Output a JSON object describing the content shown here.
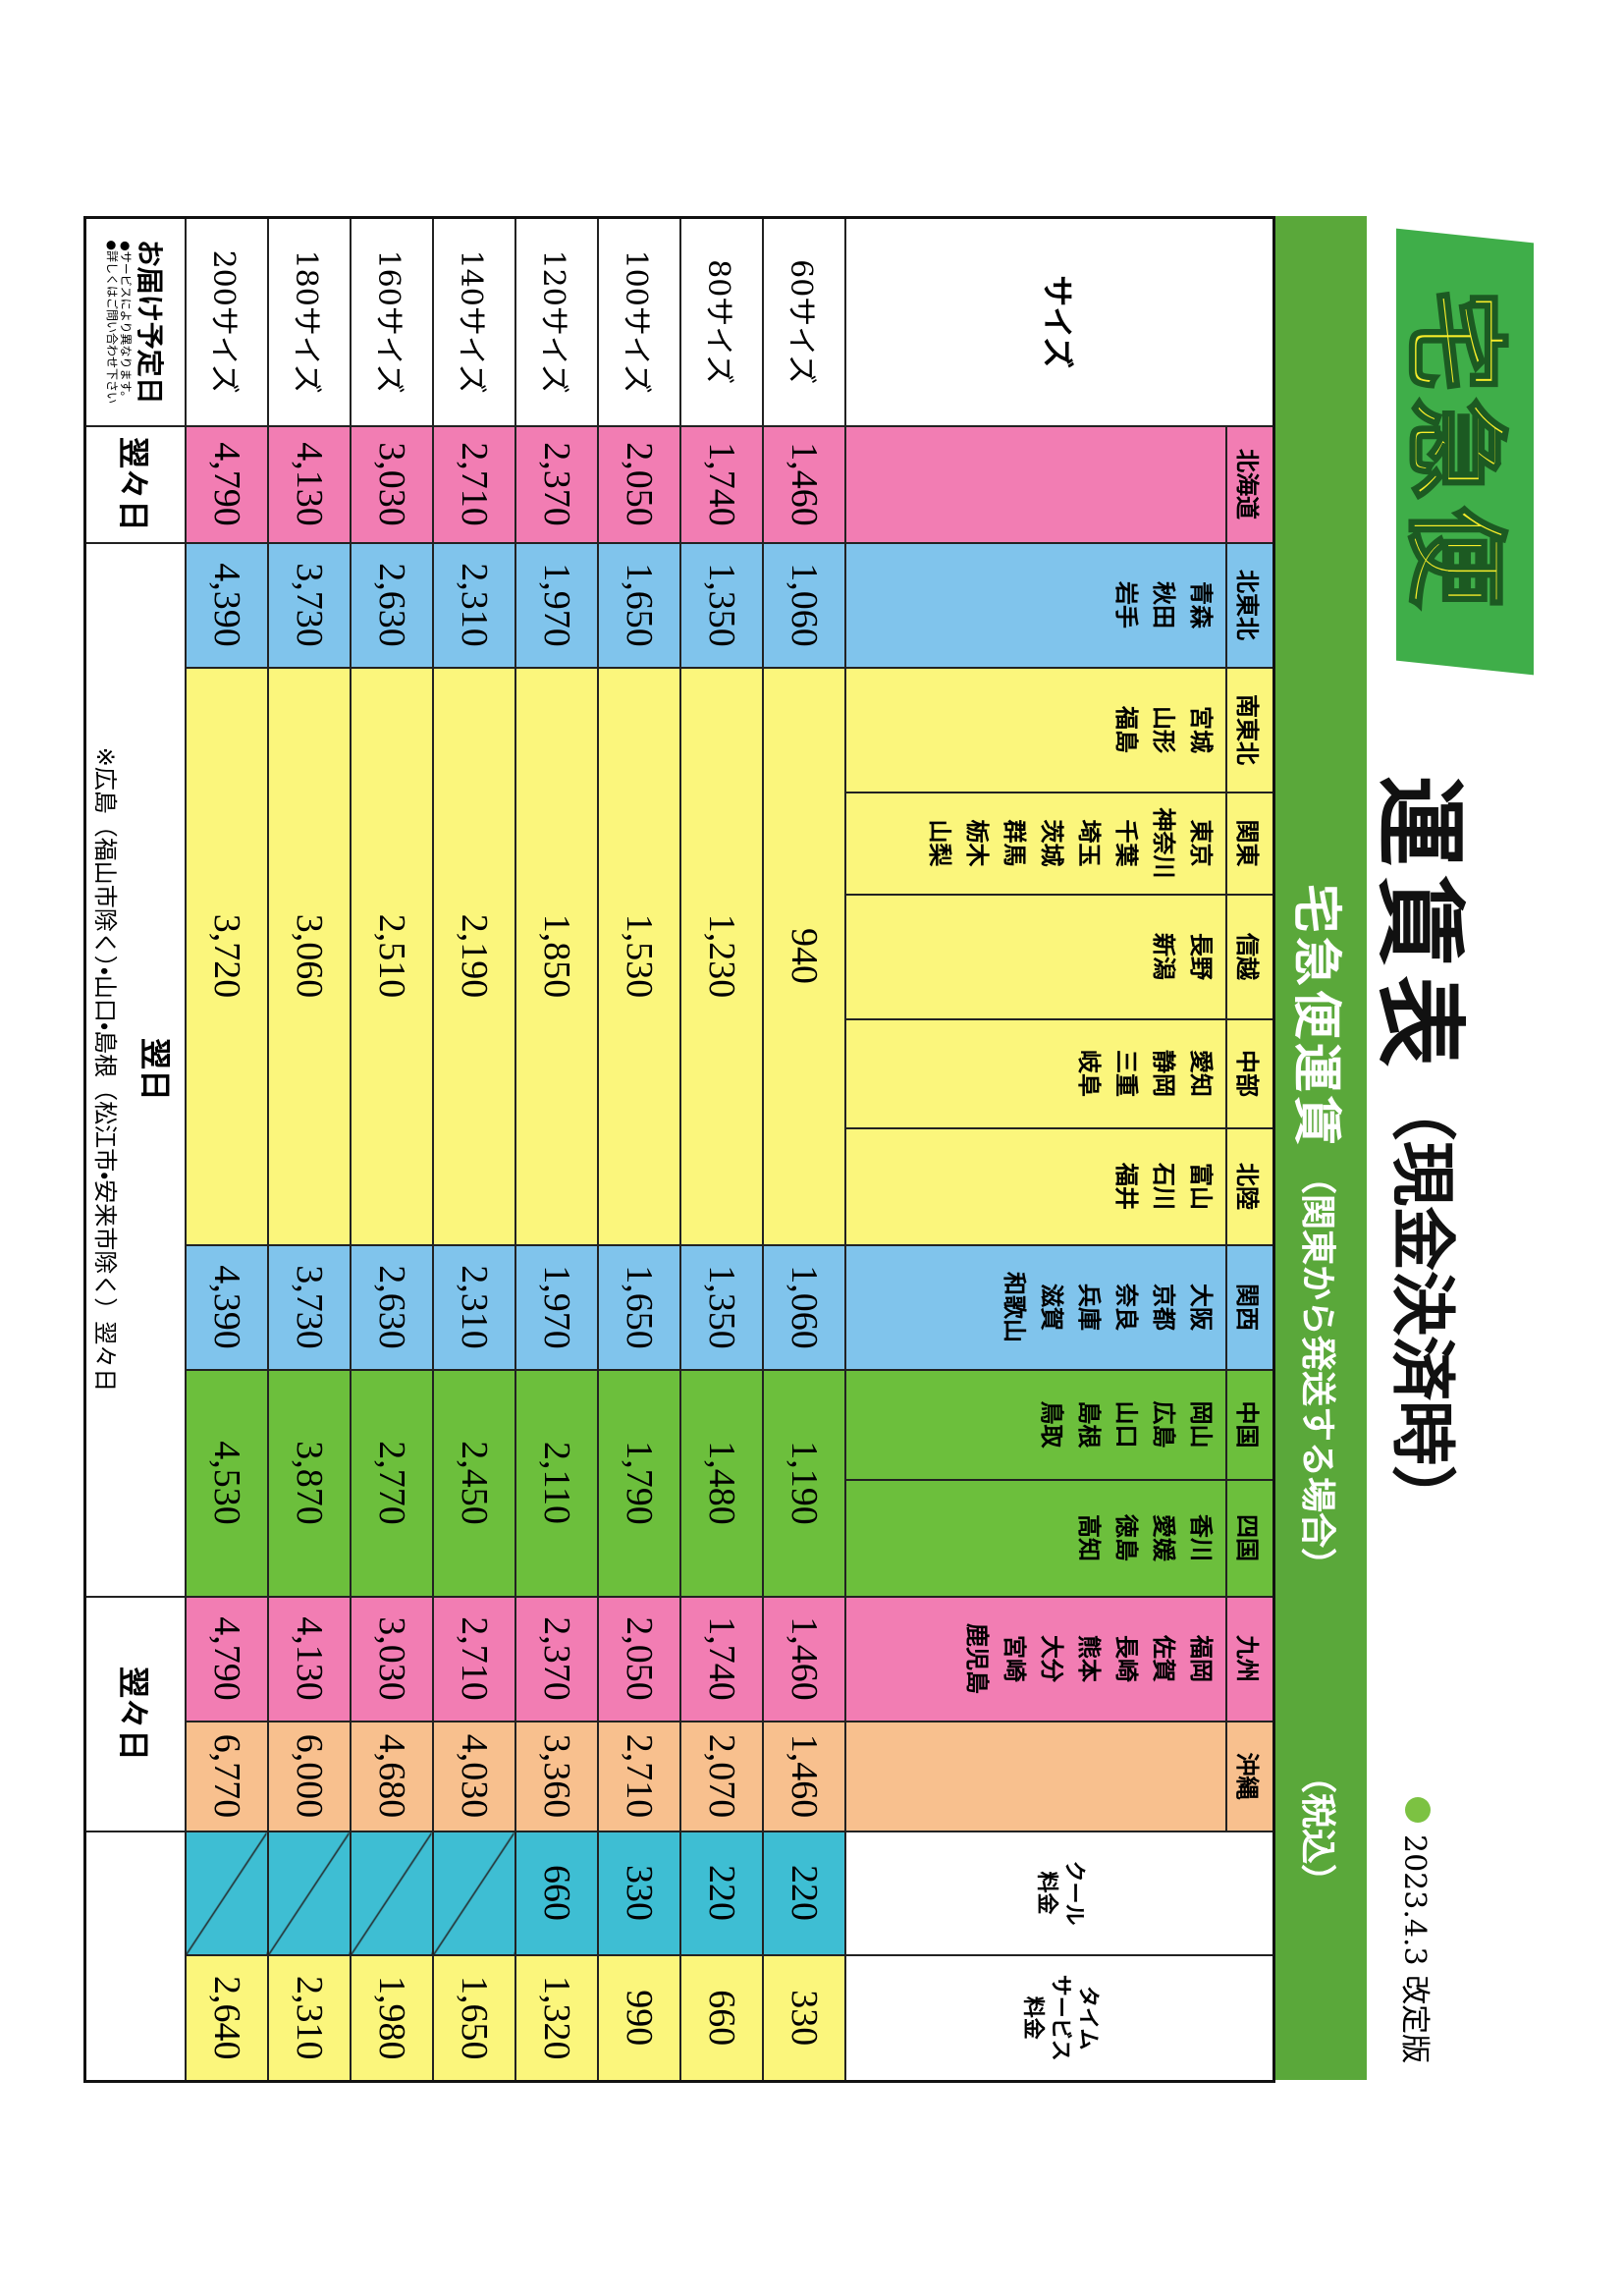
{
  "logo": "宅急便",
  "title": "運賃表",
  "title_note": "（現金決済時）",
  "revision": "2023.4.3 改定版",
  "banner": {
    "title": "宅急便運賃",
    "note": "（関東から発送する場合）",
    "tax": "（税込）"
  },
  "table": {
    "size_header": "サイズ",
    "regions": [
      {
        "name": "北海道",
        "prefectures": []
      },
      {
        "name": "北東北",
        "prefectures": [
          "青森",
          "秋田",
          "岩手"
        ]
      },
      {
        "name": "南東北",
        "prefectures": [
          "宮城",
          "山形",
          "福島"
        ]
      },
      {
        "name": "関東",
        "prefectures": [
          "東京",
          "神奈川",
          "千葉",
          "埼玉",
          "茨城",
          "群馬",
          "栃木",
          "山梨"
        ]
      },
      {
        "name": "信越",
        "prefectures": [
          "長野",
          "新潟"
        ]
      },
      {
        "name": "中部",
        "prefectures": [
          "愛知",
          "静岡",
          "三重",
          "岐阜"
        ]
      },
      {
        "name": "北陸",
        "prefectures": [
          "富山",
          "石川",
          "福井"
        ]
      },
      {
        "name": "関西",
        "prefectures": [
          "大阪",
          "京都",
          "奈良",
          "兵庫",
          "滋賀",
          "和歌山"
        ]
      },
      {
        "name": "中国",
        "prefectures": [
          "岡山",
          "広島",
          "山口",
          "島根",
          "鳥取"
        ]
      },
      {
        "name": "四国",
        "prefectures": [
          "香川",
          "愛媛",
          "徳島",
          "高知"
        ]
      },
      {
        "name": "九州",
        "prefectures": [
          "福岡",
          "佐賀",
          "長崎",
          "熊本",
          "大分",
          "宮崎",
          "鹿児島"
        ]
      },
      {
        "name": "沖縄",
        "prefectures": []
      }
    ],
    "cool_header": [
      "クール",
      "料金"
    ],
    "time_header": [
      "タイム",
      "サービス",
      "料金"
    ],
    "rows": [
      {
        "size": "60サイズ",
        "hokkaido": "1,460",
        "kita_tohoku": "1,060",
        "central": "940",
        "kansai": "1,060",
        "chugoku_shikoku": "1,190",
        "kyushu": "1,460",
        "okinawa": "1,460",
        "cool": "220",
        "time": "330"
      },
      {
        "size": "80サイズ",
        "hokkaido": "1,740",
        "kita_tohoku": "1,350",
        "central": "1,230",
        "kansai": "1,350",
        "chugoku_shikoku": "1,480",
        "kyushu": "1,740",
        "okinawa": "2,070",
        "cool": "220",
        "time": "660"
      },
      {
        "size": "100サイズ",
        "hokkaido": "2,050",
        "kita_tohoku": "1,650",
        "central": "1,530",
        "kansai": "1,650",
        "chugoku_shikoku": "1,790",
        "kyushu": "2,050",
        "okinawa": "2,710",
        "cool": "330",
        "time": "990"
      },
      {
        "size": "120サイズ",
        "hokkaido": "2,370",
        "kita_tohoku": "1,970",
        "central": "1,850",
        "kansai": "1,970",
        "chugoku_shikoku": "2,110",
        "kyushu": "2,370",
        "okinawa": "3,360",
        "cool": "660",
        "time": "1,320"
      },
      {
        "size": "140サイズ",
        "hokkaido": "2,710",
        "kita_tohoku": "2,310",
        "central": "2,190",
        "kansai": "2,310",
        "chugoku_shikoku": "2,450",
        "kyushu": "2,710",
        "okinawa": "4,030",
        "cool": null,
        "time": "1,650"
      },
      {
        "size": "160サイズ",
        "hokkaido": "3,030",
        "kita_tohoku": "2,630",
        "central": "2,510",
        "kansai": "2,630",
        "chugoku_shikoku": "2,770",
        "kyushu": "3,030",
        "okinawa": "4,680",
        "cool": null,
        "time": "1,980"
      },
      {
        "size": "180サイズ",
        "hokkaido": "4,130",
        "kita_tohoku": "3,730",
        "central": "3,060",
        "kansai": "3,730",
        "chugoku_shikoku": "3,870",
        "kyushu": "4,130",
        "okinawa": "6,000",
        "cool": null,
        "time": "2,310"
      },
      {
        "size": "200サイズ",
        "hokkaido": "4,790",
        "kita_tohoku": "4,390",
        "central": "3,720",
        "kansai": "4,390",
        "chugoku_shikoku": "4,530",
        "kyushu": "4,790",
        "okinawa": "6,770",
        "cool": null,
        "time": "2,640"
      }
    ],
    "delivery": {
      "label": "お届け予定日",
      "notes": [
        "●サービスにより異なります。",
        "●詳しくはご問い合わせ下さい"
      ],
      "hokkaido": "翌々日",
      "main": "翌日",
      "exception": "※広島（福山市除く）・山口・島根（松江市・安来市除く）翌々日",
      "south": "翌々日"
    }
  }
}
